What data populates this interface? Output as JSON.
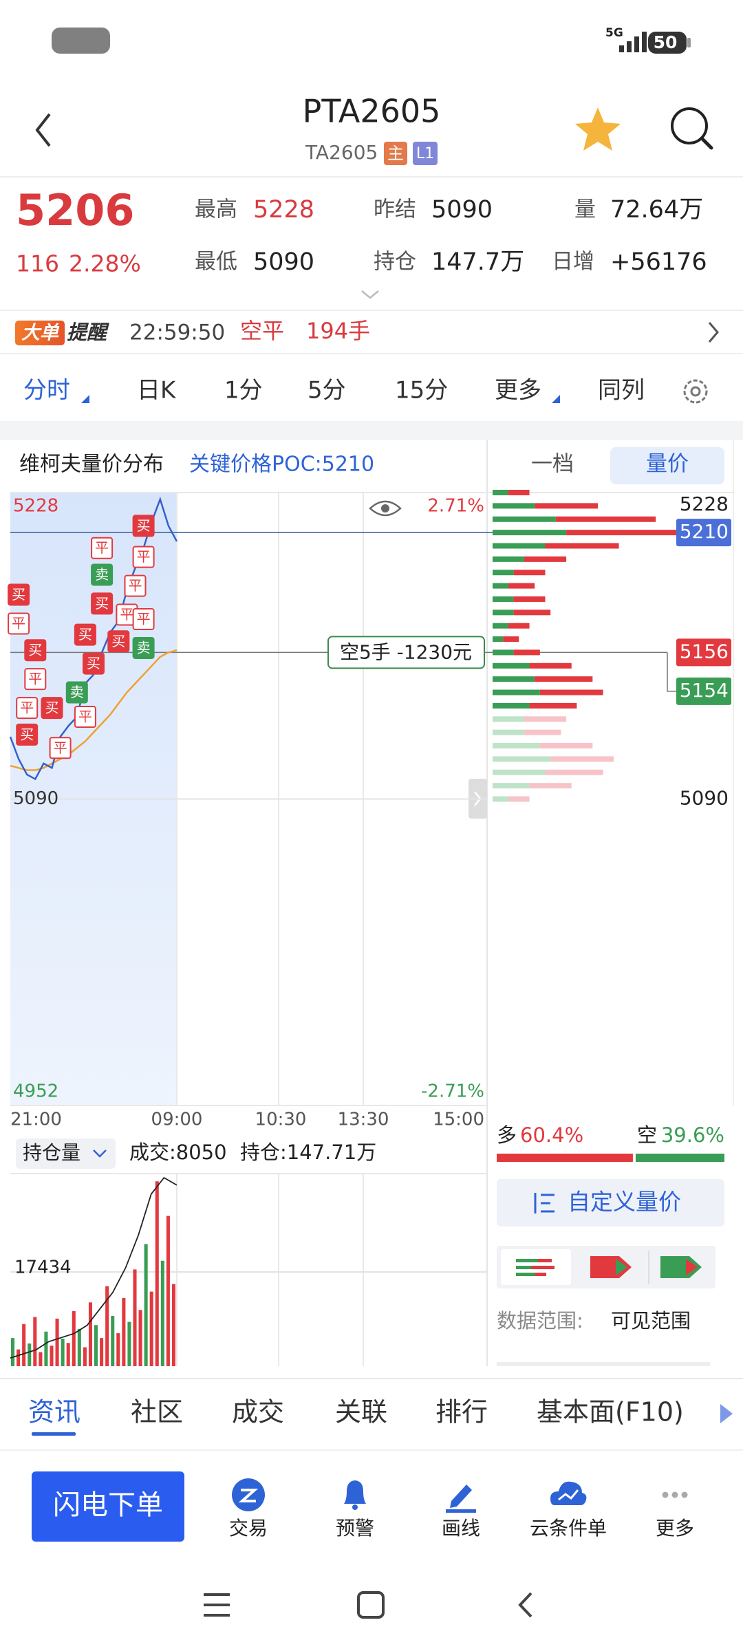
{
  "status": {
    "network": "5G",
    "battery": "50"
  },
  "header": {
    "title": "PTA2605",
    "code": "TA2605",
    "badge_main": "主",
    "badge_level": "L1"
  },
  "quote": {
    "price": "5206",
    "change": "116",
    "change_pct": "2.28%",
    "high_label": "最高",
    "high": "5228",
    "low_label": "最低",
    "low": "5090",
    "prev_settle_label": "昨结",
    "prev_settle": "5090",
    "oi_label": "持仓",
    "oi": "147.7万",
    "volume_label": "量",
    "volume": "72.64万",
    "oi_change_label": "日增",
    "oi_change": "+56176"
  },
  "alert": {
    "tag1": "大单",
    "tag2": "提醒",
    "time": "22:59:50",
    "action": "空平",
    "lots": "194手"
  },
  "period_tabs": [
    "分时",
    "日K",
    "1分",
    "5分",
    "15分",
    "更多",
    "同列"
  ],
  "panel": {
    "title": "维柯夫量价分布",
    "poc": "关键价格POC:5210",
    "side_tabs": [
      "一档",
      "量价"
    ]
  },
  "chart_data": {
    "type": "line",
    "ylim": [
      4952,
      5228
    ],
    "yticks": [
      4952,
      5090,
      5228
    ],
    "pct_top": "2.71%",
    "pct_bottom": "-2.71%",
    "x_labels": [
      "21:00",
      "09:00",
      "10:30",
      "13:30",
      "15:00"
    ],
    "values": [
      5118,
      5108,
      5101,
      5099,
      5106,
      5104,
      5118,
      5123,
      5127,
      5142,
      5146,
      5156,
      5165,
      5170,
      5184,
      5194,
      5203,
      5215,
      5225,
      5213,
      5206
    ],
    "avg_values": [
      5105,
      5104,
      5103,
      5103,
      5104,
      5106,
      5108,
      5110,
      5113,
      5116,
      5120,
      5124,
      5128,
      5133,
      5138,
      5142,
      5146,
      5150,
      5154,
      5156,
      5157
    ],
    "trade_marks": [
      {
        "label": "买",
        "idx": 16,
        "price": 5213
      },
      {
        "label": "平",
        "idx": 11,
        "price": 5203
      },
      {
        "label": "平",
        "idx": 16,
        "price": 5199
      },
      {
        "label": "卖",
        "idx": 11,
        "price": 5191
      },
      {
        "label": "平",
        "idx": 15,
        "price": 5186
      },
      {
        "label": "买",
        "idx": 11,
        "price": 5178
      },
      {
        "label": "买",
        "idx": 1,
        "price": 5182
      },
      {
        "label": "平",
        "idx": 14,
        "price": 5173
      },
      {
        "label": "平",
        "idx": 16,
        "price": 5171
      },
      {
        "label": "买",
        "idx": 9,
        "price": 5164
      },
      {
        "label": "平",
        "idx": 1,
        "price": 5169
      },
      {
        "label": "买",
        "idx": 13,
        "price": 5161
      },
      {
        "label": "卖",
        "idx": 16,
        "price": 5158
      },
      {
        "label": "买",
        "idx": 3,
        "price": 5157
      },
      {
        "label": "买",
        "idx": 10,
        "price": 5151
      },
      {
        "label": "平",
        "idx": 3,
        "price": 5144
      },
      {
        "label": "卖",
        "idx": 8,
        "price": 5138
      },
      {
        "label": "买",
        "idx": 5,
        "price": 5131
      },
      {
        "label": "平",
        "idx": 2,
        "price": 5131
      },
      {
        "label": "平",
        "idx": 9,
        "price": 5127
      },
      {
        "label": "买",
        "idx": 2,
        "price": 5119
      },
      {
        "label": "平",
        "idx": 6,
        "price": 5113
      }
    ],
    "poc_price": 5210,
    "position_price": 5156,
    "position_note": "空5手  -1230元",
    "profile": {
      "prices": [
        5228,
        5222,
        5216,
        5210,
        5204,
        5198,
        5192,
        5186,
        5180,
        5174,
        5168,
        5162,
        5156,
        5150,
        5144,
        5138,
        5132,
        5126,
        5120,
        5114,
        5108,
        5102,
        5096,
        5090
      ],
      "long": [
        20,
        60,
        95,
        110,
        70,
        40,
        30,
        25,
        30,
        35,
        20,
        15,
        25,
        40,
        55,
        60,
        45,
        40,
        35,
        50,
        60,
        55,
        40,
        20
      ],
      "short": [
        15,
        40,
        60,
        70,
        50,
        30,
        20,
        15,
        20,
        20,
        15,
        10,
        20,
        35,
        40,
        45,
        35,
        30,
        30,
        45,
        55,
        50,
        35,
        15
      ],
      "labels": [
        5228,
        5210,
        5156,
        5154,
        5090
      ]
    },
    "long_short": {
      "labels": [
        "多",
        "空"
      ],
      "values": [
        60.4,
        39.6
      ],
      "value_labels": [
        "60.4%",
        "39.6%"
      ]
    },
    "volume_panel": {
      "selector": "持仓量",
      "turnover": "成交:8050",
      "oi": "持仓:147.71万",
      "ylim": [
        0,
        34868
      ],
      "yticks": [
        17434
      ],
      "values": [
        5200,
        3100,
        7800,
        4200,
        9100,
        2600,
        6400,
        3800,
        8800,
        5100,
        4300,
        10200,
        6900,
        3500,
        11800,
        7600,
        5200,
        14800,
        9300,
        6100,
        12600,
        8200,
        17900,
        10400,
        22600,
        13800,
        34200,
        19500,
        27800,
        15200
      ],
      "oi_ylim": [
        145.5,
        147.8
      ],
      "oi_values": [
        145.6,
        145.65,
        145.7,
        145.8,
        145.85,
        145.9,
        146.0,
        146.2,
        146.4,
        146.7,
        147.1,
        147.6,
        147.8,
        147.71
      ]
    }
  },
  "side_panel": {
    "custom_button": "自定义量价",
    "range_label": "数据范围:",
    "range_value": "可见范围"
  },
  "info_tabs": [
    "资讯",
    "社区",
    "成交",
    "关联",
    "排行",
    "基本面(F10)"
  ],
  "actions": {
    "primary": "闪电下单",
    "items": [
      "交易",
      "预警",
      "画线",
      "云条件单",
      "更多"
    ]
  }
}
